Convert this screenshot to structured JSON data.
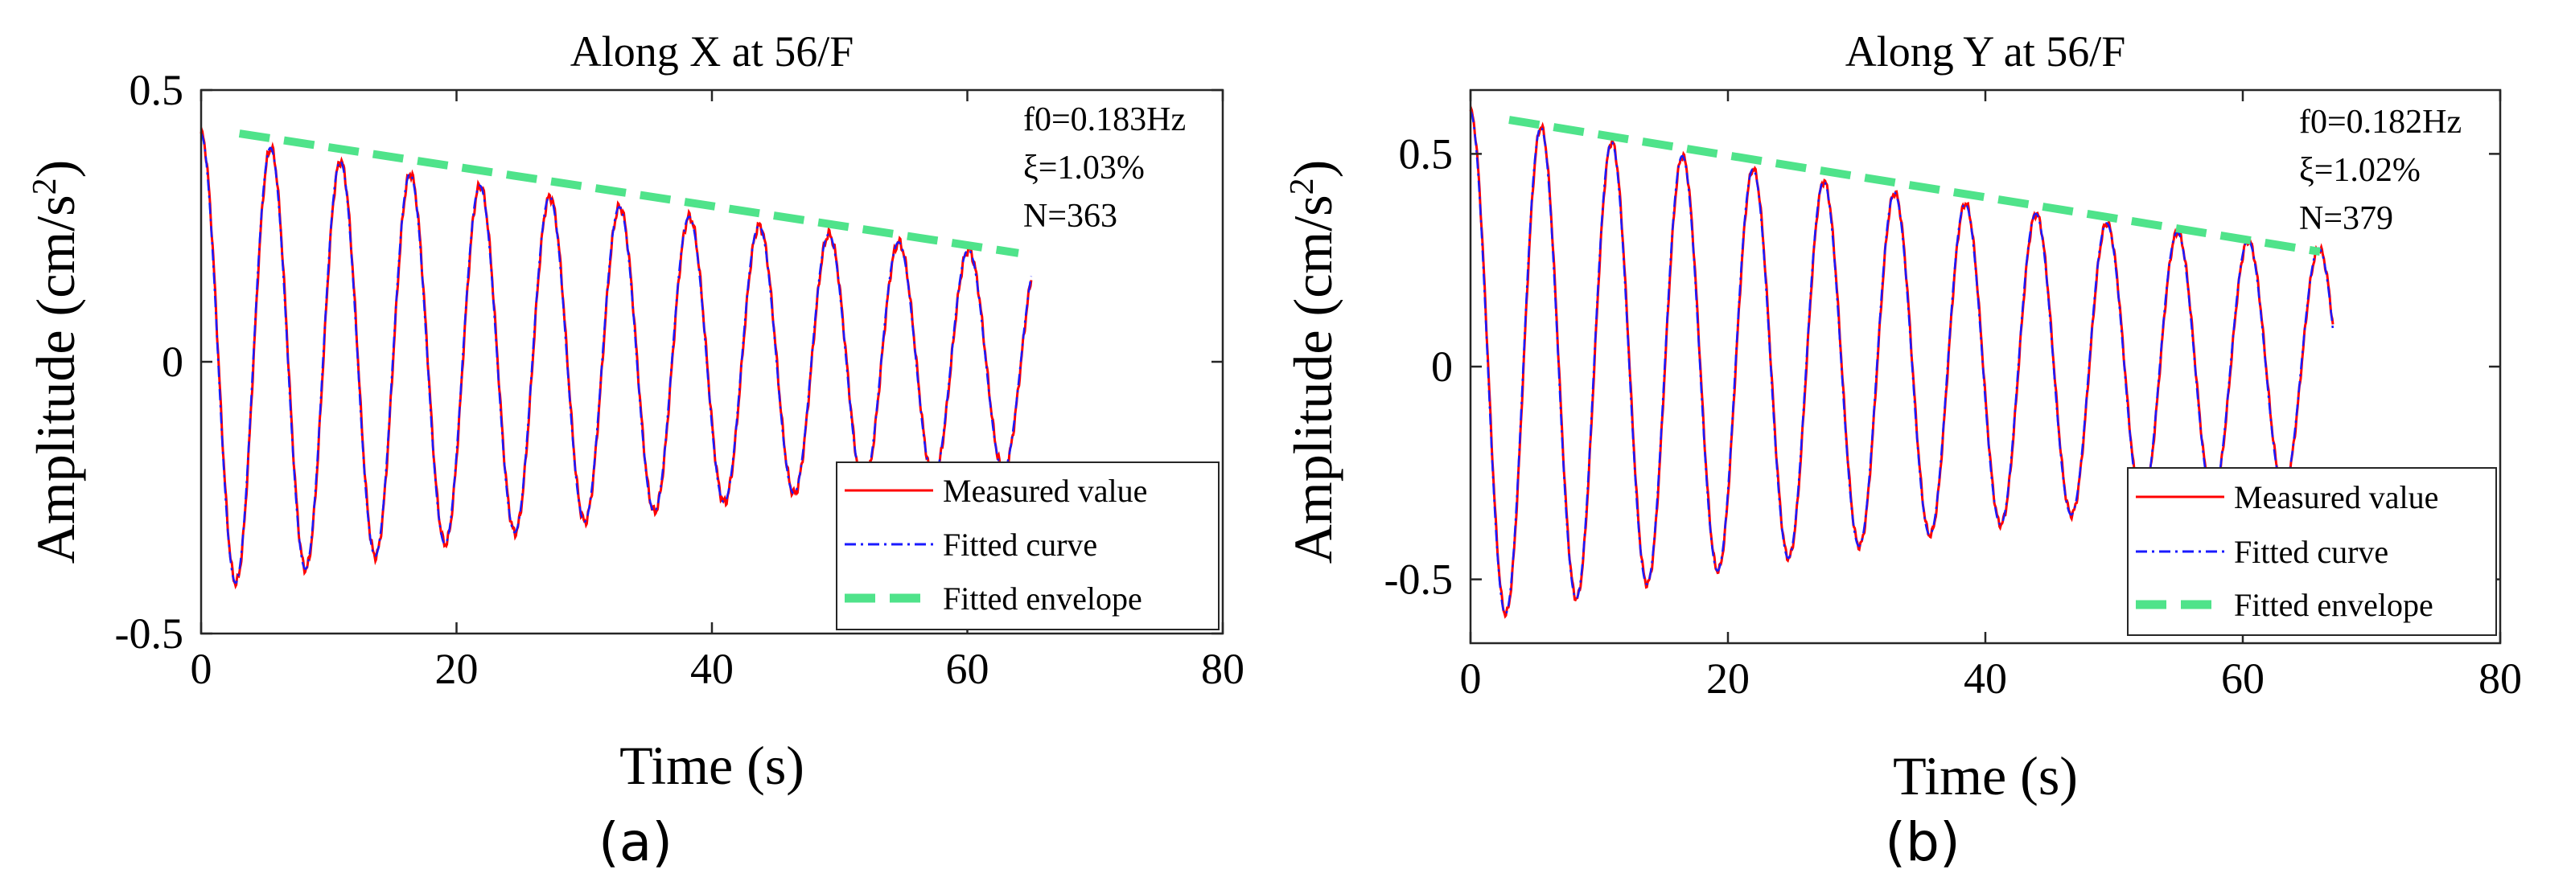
{
  "chart_data": [
    {
      "panel_label": "(a)",
      "type": "line",
      "title": "Along X at 56/F",
      "xlabel": "Time (s)",
      "ylabel_main": "Amplitude (cm/s",
      "ylabel_sup": "2",
      "ylabel_tail": ")",
      "xlim": [
        0,
        80
      ],
      "ylim": [
        -0.5,
        0.5
      ],
      "xticks": [
        0,
        20,
        40,
        60,
        80
      ],
      "xtick_labels": [
        "0",
        "20",
        "40",
        "60",
        "80"
      ],
      "yticks": [
        -0.5,
        0,
        0.5
      ],
      "ytick_labels": [
        "-0.5",
        "0",
        "0.5"
      ],
      "grid": false,
      "legend_position": "bottom-right",
      "annotation_f0": "f0=0.183Hz",
      "annotation_xi": "ξ=1.03%",
      "annotation_n": "N=363",
      "signal": {
        "A0": 0.42,
        "frequency_hz": 0.183,
        "damping_ratio": 0.0103,
        "t_start": 0,
        "t_end": 65
      },
      "envelope": {
        "x": [
          3,
          64
        ],
        "y": [
          0.42,
          0.2
        ]
      },
      "series": [
        {
          "name": "Measured value",
          "color": "#ff0000",
          "style": "solid"
        },
        {
          "name": "Fitted curve",
          "color": "#1a1aff",
          "style": "dash-dot"
        },
        {
          "name": "Fitted envelope",
          "color": "#4fe38a",
          "style": "dashed"
        }
      ]
    },
    {
      "panel_label": "(b)",
      "type": "line",
      "title": "Along Y at 56/F",
      "xlabel": "Time (s)",
      "ylabel_main": "Amplitude (cm/s",
      "ylabel_sup": "2",
      "ylabel_tail": ")",
      "xlim": [
        0,
        80
      ],
      "ylim": [
        -0.65,
        0.65
      ],
      "xticks": [
        0,
        20,
        40,
        60,
        80
      ],
      "xtick_labels": [
        "0",
        "20",
        "40",
        "60",
        "80"
      ],
      "yticks": [
        -0.5,
        0,
        0.5
      ],
      "ytick_labels": [
        "-0.5",
        "0",
        "0.5"
      ],
      "grid": false,
      "legend_position": "bottom-right",
      "annotation_f0": "f0=0.182Hz",
      "annotation_xi": "ξ=1.02%",
      "annotation_n": "N=379",
      "signal": {
        "A0": 0.6,
        "frequency_hz": 0.182,
        "damping_ratio": 0.0102,
        "t_start": 0,
        "t_end": 67
      },
      "envelope": {
        "x": [
          3,
          66
        ],
        "y": [
          0.58,
          0.27
        ]
      },
      "series": [
        {
          "name": "Measured value",
          "color": "#ff0000",
          "style": "solid"
        },
        {
          "name": "Fitted curve",
          "color": "#1a1aff",
          "style": "dash-dot"
        },
        {
          "name": "Fitted envelope",
          "color": "#4fe38a",
          "style": "dashed"
        }
      ]
    }
  ]
}
